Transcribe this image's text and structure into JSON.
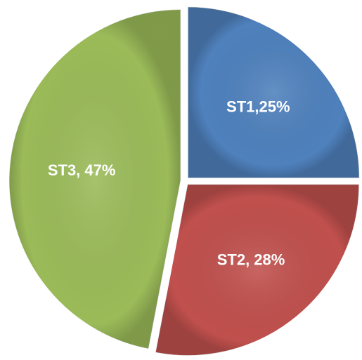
{
  "chart_data": {
    "type": "pie",
    "values": [
      25,
      28,
      47
    ],
    "value_labels": [
      "ST1,25%",
      "ST2, 28%",
      "ST3, 47%"
    ],
    "colors": [
      "#4f81bd",
      "#c0504d",
      "#9bbb59"
    ]
  }
}
